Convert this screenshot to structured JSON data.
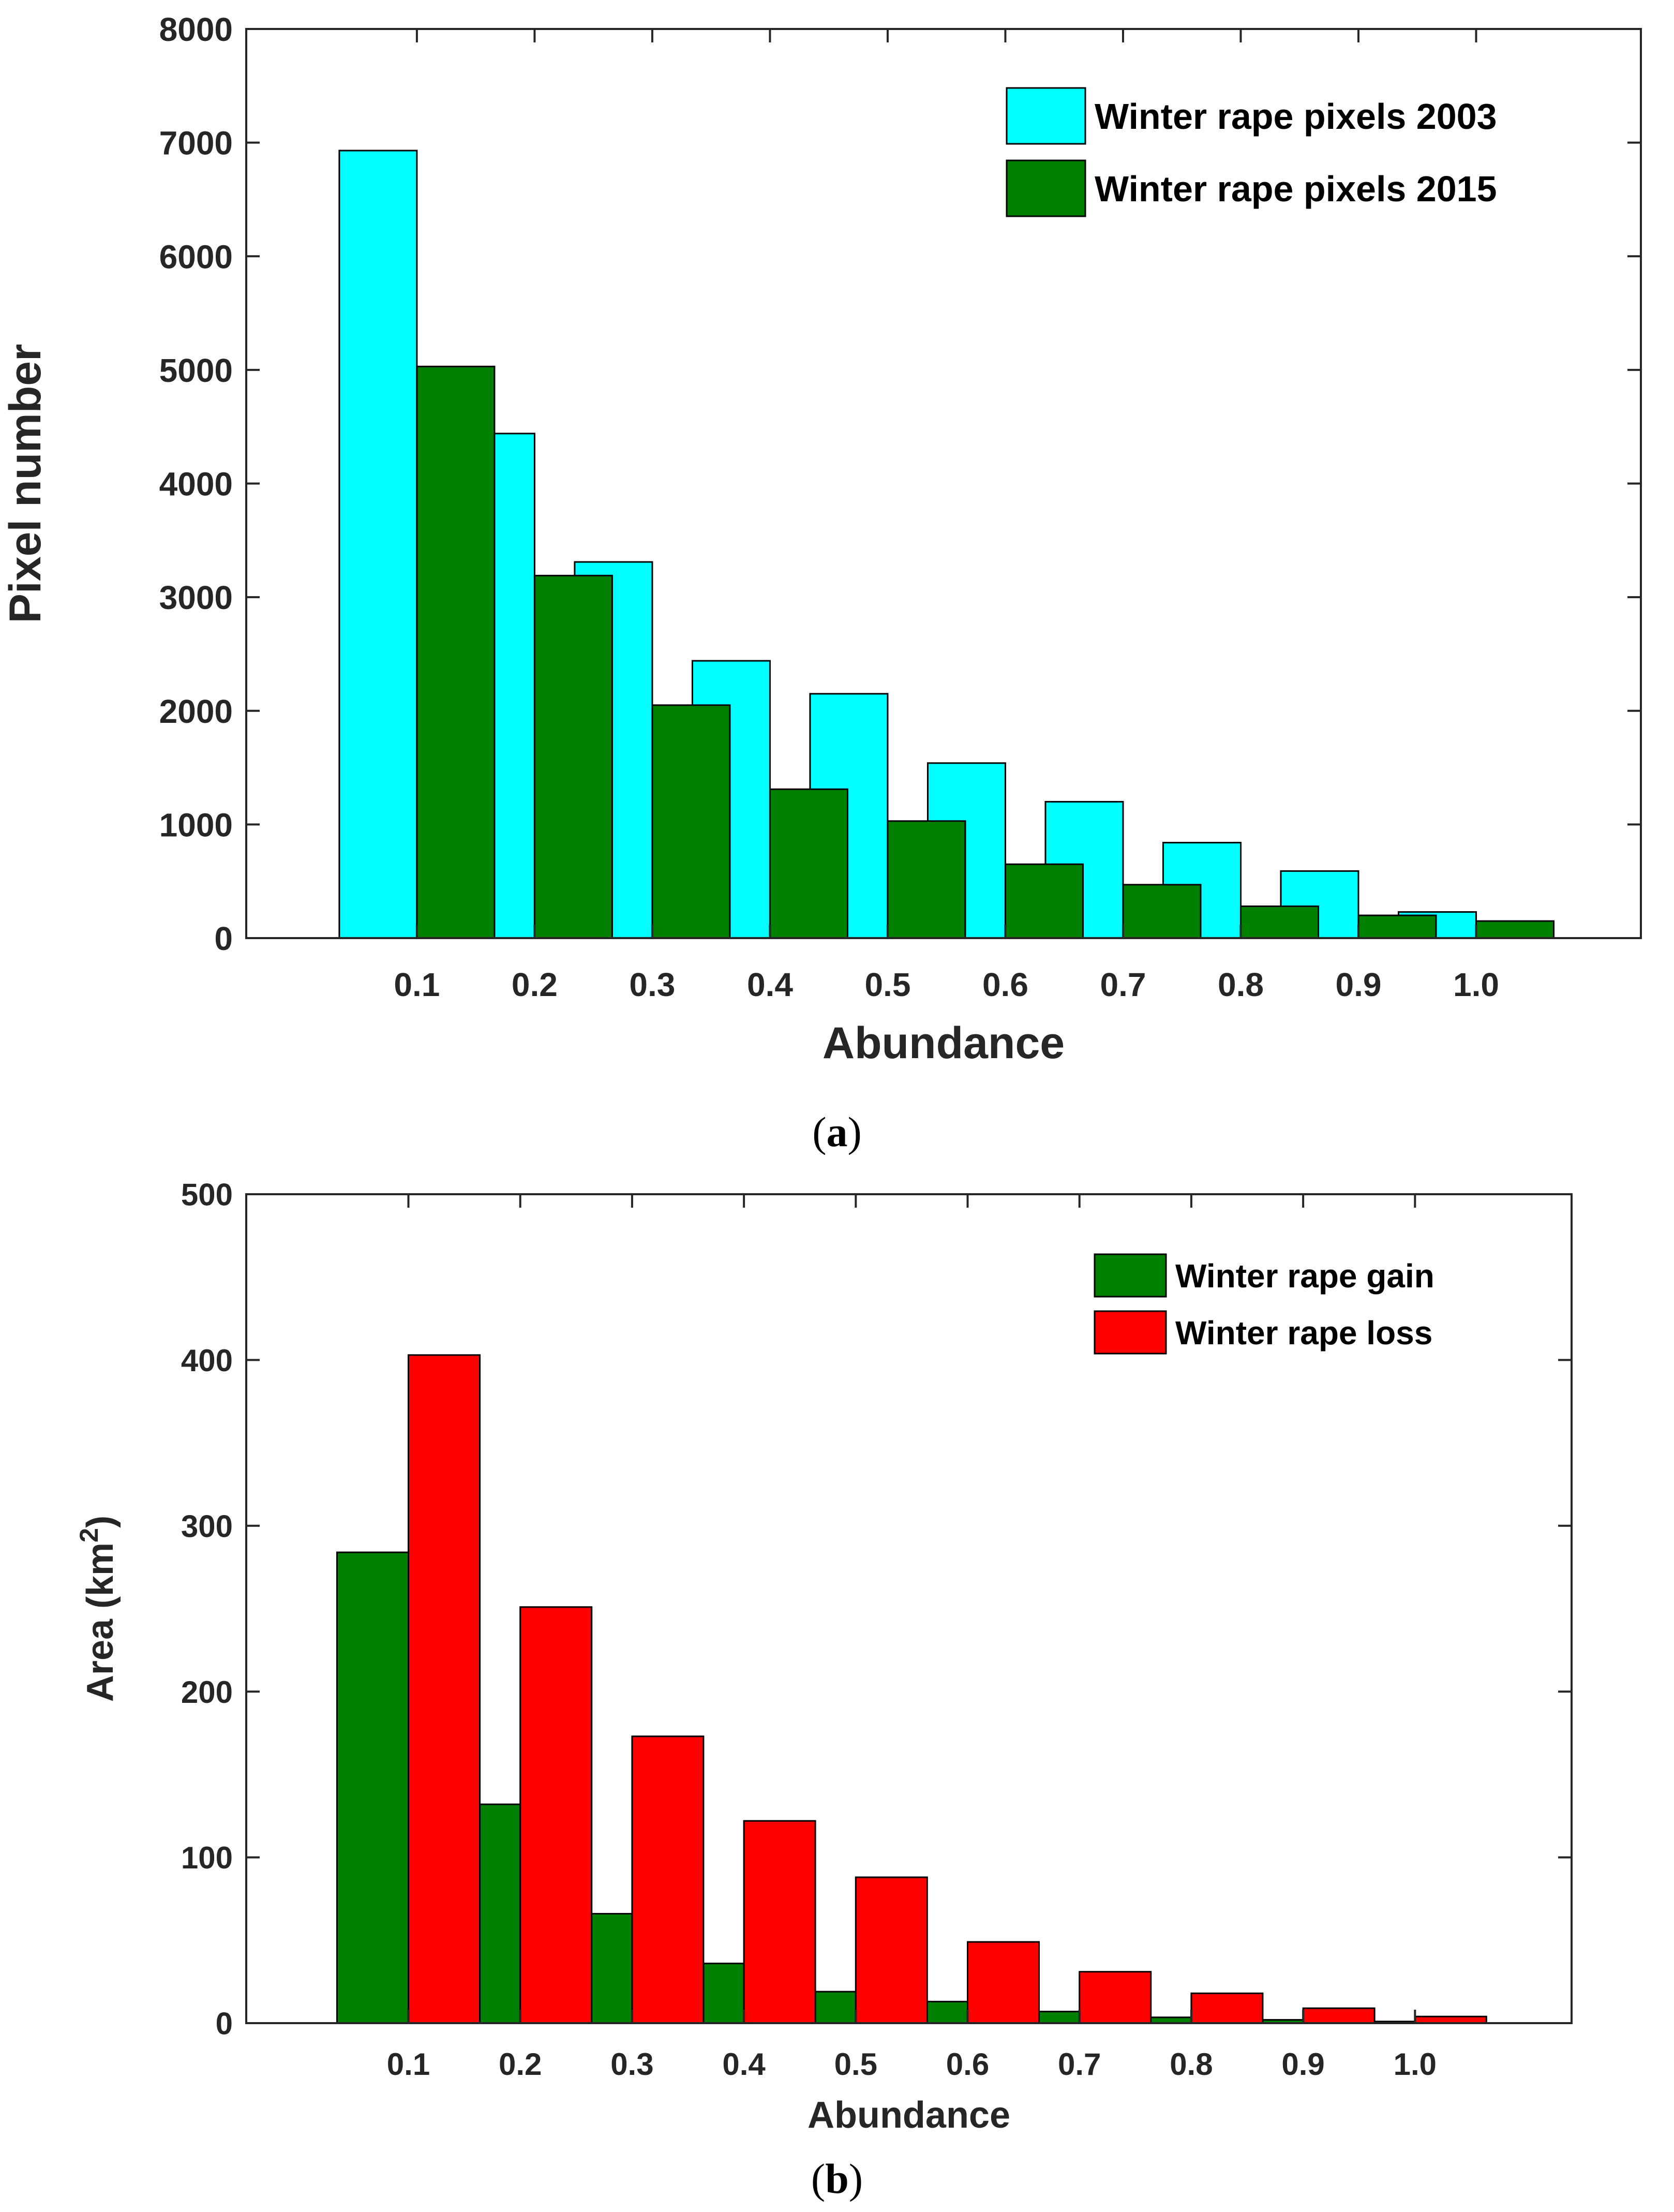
{
  "chart_data": [
    {
      "type": "bar",
      "caption": {
        "open": "(",
        "letter": "a",
        "close": ")"
      },
      "title": "",
      "xlabel": "Abundance",
      "ylabel": "Pixel number",
      "categories": [
        "0.1",
        "0.2",
        "0.3",
        "0.4",
        "0.5",
        "0.6",
        "0.7",
        "0.8",
        "0.9",
        "1.0"
      ],
      "ylim": [
        0,
        8000
      ],
      "yticks": [
        "0",
        "1000",
        "2000",
        "3000",
        "4000",
        "5000",
        "6000",
        "7000",
        "8000"
      ],
      "legend_position": "top-right",
      "series": [
        {
          "name": "Winter rape pixels 2003",
          "color": "#00ffff",
          "values": [
            6930,
            4440,
            3310,
            2440,
            2150,
            1540,
            1200,
            840,
            590,
            230
          ]
        },
        {
          "name": "Winter rape pixels 2015",
          "color": "#008000",
          "values": [
            5030,
            3190,
            2050,
            1310,
            1030,
            650,
            470,
            280,
            200,
            150
          ]
        }
      ]
    },
    {
      "type": "bar",
      "caption": {
        "open": "(",
        "letter": "b",
        "close": ")"
      },
      "title": "",
      "xlabel": "Abundance",
      "ylabel": "Area (km",
      "ylabel_sup": "2",
      "ylabel_close": ")",
      "categories": [
        "0.1",
        "0.2",
        "0.3",
        "0.4",
        "0.5",
        "0.6",
        "0.7",
        "0.8",
        "0.9",
        "1.0"
      ],
      "ylim": [
        0,
        500
      ],
      "yticks": [
        "0",
        "100",
        "200",
        "300",
        "400",
        "500"
      ],
      "legend_position": "top-right",
      "series": [
        {
          "name": "Winter rape gain",
          "color": "#008000",
          "values": [
            284,
            132,
            66,
            36,
            19,
            13,
            7,
            3.5,
            2,
            1
          ]
        },
        {
          "name": "Winter rape loss",
          "color": "#ff0000",
          "values": [
            403,
            251,
            173,
            122,
            88,
            49,
            31,
            18,
            9,
            4
          ]
        }
      ]
    }
  ]
}
